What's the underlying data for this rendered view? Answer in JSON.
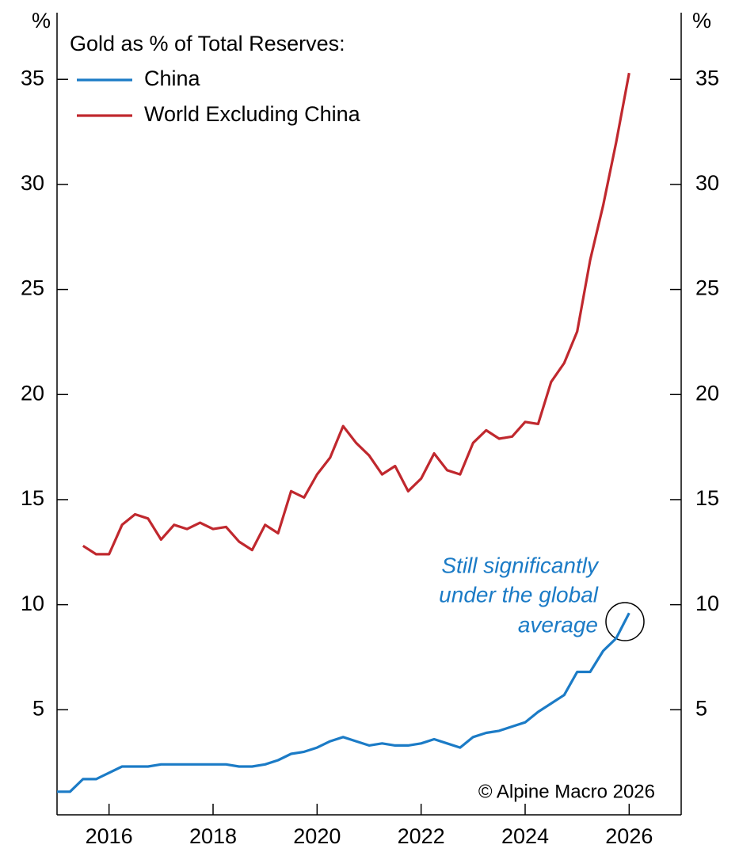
{
  "chart_data": {
    "type": "line",
    "legend_title": "Gold as % of Total Reserves:",
    "y_unit": "%",
    "annotation": [
      "Still significantly",
      "under the global",
      "average"
    ],
    "source": "© Alpine Macro 2026",
    "x": [
      2015.0,
      2015.25,
      2015.5,
      2015.75,
      2016.0,
      2016.25,
      2016.5,
      2016.75,
      2017.0,
      2017.25,
      2017.5,
      2017.75,
      2018.0,
      2018.25,
      2018.5,
      2018.75,
      2019.0,
      2019.25,
      2019.5,
      2019.75,
      2020.0,
      2020.25,
      2020.5,
      2020.75,
      2021.0,
      2021.25,
      2021.5,
      2021.75,
      2022.0,
      2022.25,
      2022.5,
      2022.75,
      2023.0,
      2023.25,
      2023.5,
      2023.75,
      2024.0,
      2024.25,
      2024.5,
      2024.75,
      2025.0,
      2025.25,
      2025.5,
      2025.75,
      2026.0
    ],
    "series": [
      {
        "name": "China",
        "color": "#1b7bc6",
        "values": [
          1.1,
          1.1,
          1.7,
          1.7,
          2.0,
          2.3,
          2.3,
          2.3,
          2.4,
          2.4,
          2.4,
          2.4,
          2.4,
          2.4,
          2.3,
          2.3,
          2.4,
          2.6,
          2.9,
          3.0,
          3.2,
          3.5,
          3.7,
          3.5,
          3.3,
          3.4,
          3.3,
          3.3,
          3.4,
          3.6,
          3.4,
          3.2,
          3.7,
          3.9,
          4.0,
          4.2,
          4.4,
          4.9,
          5.3,
          5.7,
          6.8,
          6.8,
          7.8,
          8.4,
          9.6
        ]
      },
      {
        "name": "World Excluding China",
        "color": "#c0282e",
        "values": [
          null,
          null,
          12.8,
          12.4,
          12.4,
          13.8,
          14.3,
          14.1,
          13.1,
          13.8,
          13.6,
          13.9,
          13.6,
          13.7,
          13.0,
          12.6,
          13.8,
          13.4,
          15.4,
          15.1,
          16.2,
          17.0,
          18.5,
          17.7,
          17.1,
          16.2,
          16.6,
          15.4,
          16.0,
          17.2,
          16.4,
          16.2,
          17.7,
          18.3,
          17.9,
          18.0,
          18.7,
          18.6,
          20.6,
          21.5,
          23.0,
          26.4,
          29.0,
          32.0,
          35.3
        ]
      }
    ],
    "xlim": [
      2015,
      2027
    ],
    "xticks": [
      2016,
      2018,
      2020,
      2022,
      2024,
      2026
    ],
    "ylim": [
      0,
      38
    ],
    "yticks": [
      5,
      10,
      15,
      20,
      25,
      30,
      35
    ]
  }
}
